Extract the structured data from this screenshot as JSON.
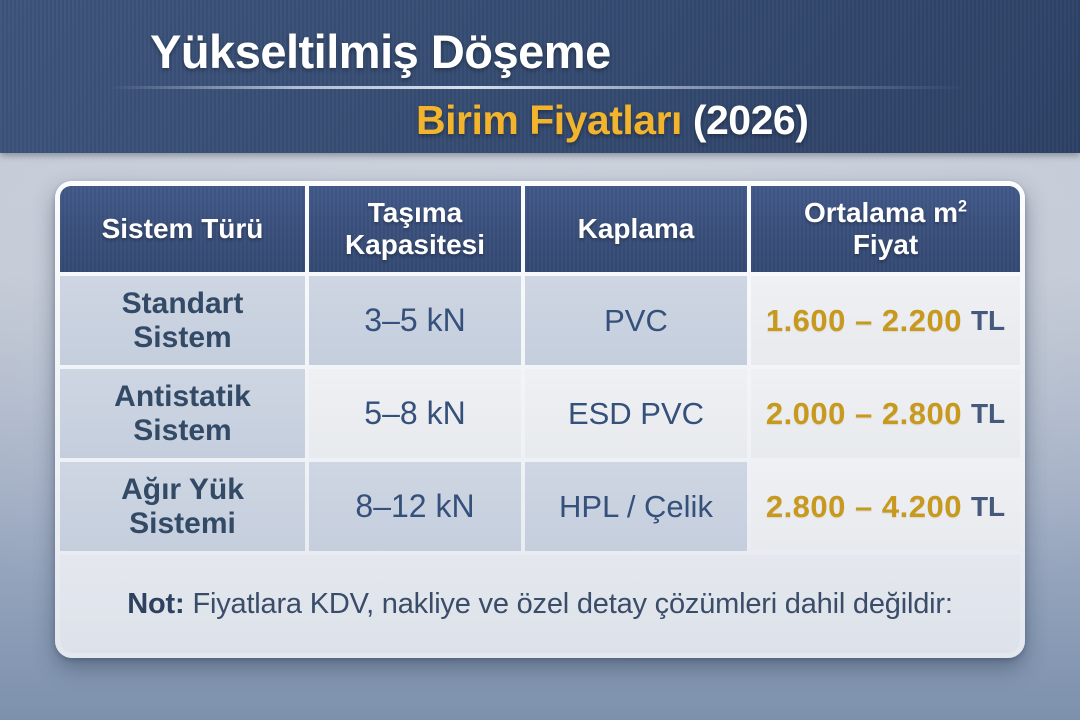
{
  "banner": {
    "title": "Yükseltilmiş Döşeme",
    "subtitle_highlight": "Birim Fiyatları",
    "subtitle_suffix": " (2026)"
  },
  "chart_data": {
    "type": "table",
    "title": "Yükseltilmiş Döşeme Birim Fiyatları (2026)",
    "columns": [
      "Sistem Türü",
      "Taşıma Kapasitesi",
      "Kaplama",
      "Ortalama m² Fiyat"
    ],
    "rows": [
      [
        "Standart Sistem",
        "3–5 kN",
        "PVC",
        "1.600 – 2.200 TL"
      ],
      [
        "Antistatik Sistem",
        "5–8 kN",
        "ESD PVC",
        "2.000 – 2.800 TL"
      ],
      [
        "Ağır Yük Sistemi",
        "8–12 kN",
        "HPL / Çelik",
        "2.800 – 4.200 TL"
      ]
    ]
  },
  "table": {
    "headers": {
      "system": "Sistem Türü",
      "capacity": "Taşıma Kapasitesi",
      "covering": "Kaplama",
      "price_line1": "Ortalama m",
      "price_sup": "2",
      "price_line2": "Fiyat"
    },
    "rows": [
      {
        "system": "Standart Sistem",
        "capacity": "3–5 kN",
        "covering": "PVC",
        "price": "1.600 – 2.200",
        "currency": "TL"
      },
      {
        "system": "Antistatik Sistem",
        "capacity": "5–8 kN",
        "covering": "ESD PVC",
        "price": "2.000 – 2.800",
        "currency": "TL"
      },
      {
        "system": "Ağır Yük Sistemi",
        "capacity": "8–12 kN",
        "covering": "HPL / Çelik",
        "price": "2.800 – 4.200",
        "currency": "TL"
      }
    ],
    "note_label": "Not:",
    "note_text": "Fiyatlara KDV, nakliye ve özel detay çözümleri dahil değildir:"
  },
  "colors": {
    "banner_navy": "#344a70",
    "header_navy": "#3a507b",
    "accent_gold": "#f2b42c",
    "price_gold": "#c7991e",
    "cell_dark": "#c9d2e0",
    "cell_light": "#eceef2",
    "text_navy": "#324a66"
  }
}
